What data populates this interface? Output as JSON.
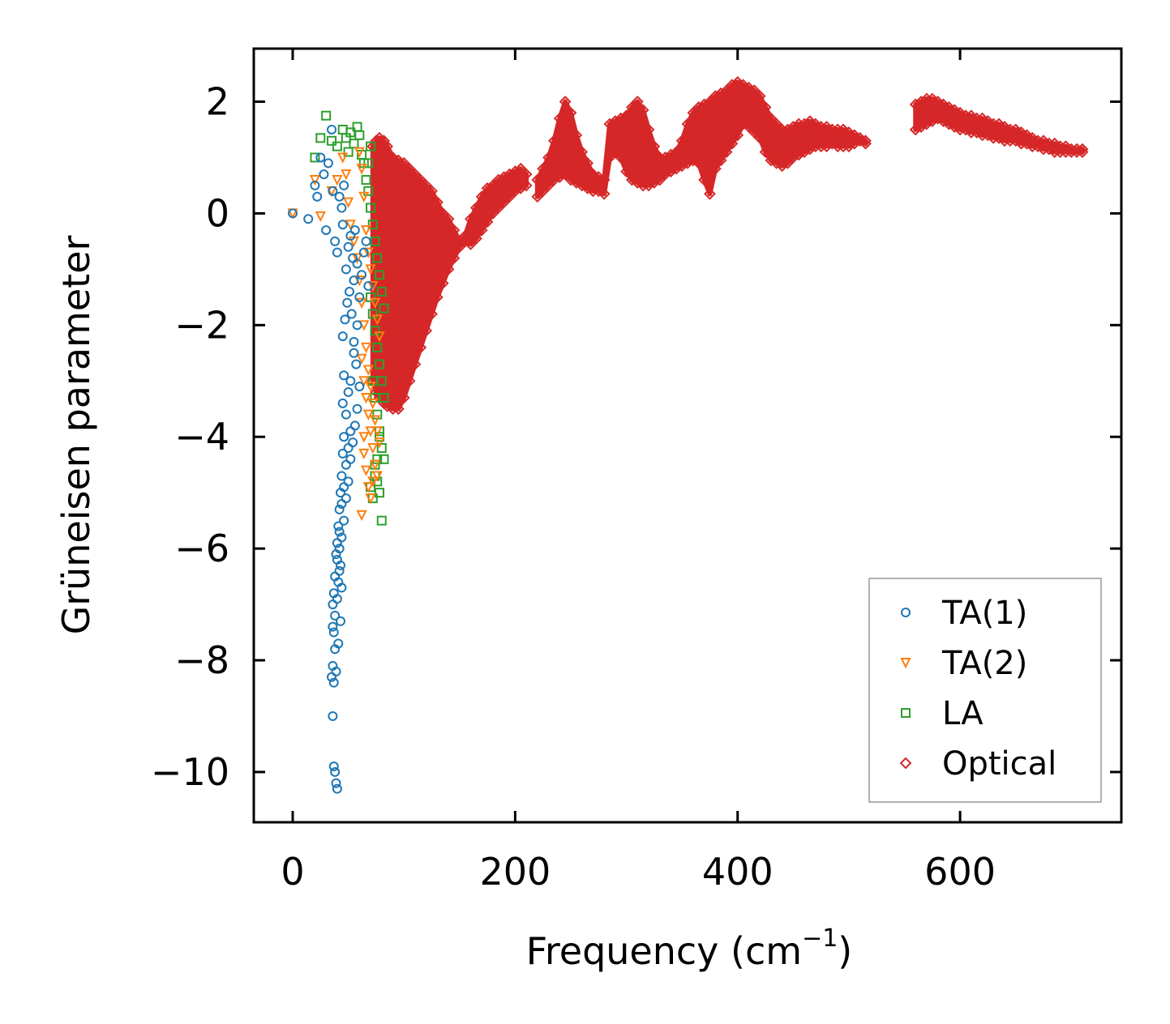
{
  "chart_data": {
    "type": "scatter",
    "title": "",
    "xlabel": "Frequency (cm",
    "xlabel_sup": "−1",
    "xlabel_end": ")",
    "ylabel": "Grüneisen parameter",
    "xlim": [
      -35,
      745
    ],
    "ylim": [
      -10.9,
      2.95
    ],
    "xticks": [
      0,
      200,
      400,
      600
    ],
    "xtick_labels": [
      "0",
      "200",
      "400",
      "600"
    ],
    "yticks": [
      2,
      0,
      -2,
      -4,
      -6,
      -8,
      -10
    ],
    "ytick_labels": [
      "2",
      "0",
      "−2",
      "−4",
      "−6",
      "−8",
      "−10"
    ],
    "grid": false,
    "legend_position": "lower-right",
    "series": [
      {
        "name": "TA(1)",
        "marker": "circle",
        "color": "#1f77b4",
        "x": [
          0,
          14,
          20,
          22,
          25,
          28,
          30,
          32,
          35,
          36,
          38,
          40,
          42,
          44,
          45,
          46,
          48,
          50,
          52,
          54,
          55,
          56,
          58,
          60,
          62,
          64,
          66,
          68,
          58,
          55,
          52,
          50,
          48,
          46,
          45,
          44,
          43,
          42,
          41,
          40,
          39,
          38,
          37,
          36,
          36,
          37,
          38,
          40,
          42,
          44,
          46,
          48,
          50,
          52,
          54,
          56,
          58,
          60,
          45,
          47,
          49,
          51,
          53,
          55,
          57,
          40,
          42,
          44,
          46,
          48,
          50,
          52,
          38,
          36,
          35,
          37,
          39,
          41,
          43,
          36,
          37,
          38,
          39,
          40,
          41,
          42,
          43,
          44,
          45,
          46
        ],
        "y": [
          0,
          -0.1,
          0.5,
          0.3,
          1.0,
          0.7,
          -0.3,
          0.9,
          1.5,
          0.4,
          -0.5,
          -0.7,
          0.3,
          0.1,
          -0.2,
          0.5,
          -1.0,
          -0.6,
          -0.4,
          -0.8,
          -1.2,
          -0.3,
          -0.9,
          -1.5,
          -1.1,
          -0.7,
          -0.5,
          -1.3,
          -2.0,
          -2.5,
          -3.0,
          -3.2,
          -3.6,
          -4.0,
          -4.3,
          -4.7,
          -5.0,
          -5.3,
          -5.6,
          -5.9,
          -6.1,
          -6.5,
          -6.8,
          -7.0,
          -7.4,
          -7.5,
          -7.2,
          -6.9,
          -6.0,
          -5.8,
          -5.5,
          -5.1,
          -4.8,
          -4.4,
          -4.1,
          -3.8,
          -3.5,
          -3.1,
          -2.2,
          -1.9,
          -1.6,
          -1.4,
          -1.8,
          -2.3,
          -2.7,
          -6.2,
          -5.7,
          -5.2,
          -4.9,
          -4.5,
          -4.2,
          -3.9,
          -7.8,
          -8.1,
          -8.3,
          -8.4,
          -8.2,
          -7.7,
          -7.3,
          -9.0,
          -9.9,
          -10.0,
          -10.2,
          -10.3,
          -6.6,
          -6.4,
          -6.3,
          -6.7,
          -3.4,
          -2.9
        ]
      },
      {
        "name": "TA(2)",
        "marker": "triangle-down",
        "color": "#ff7f0e",
        "x": [
          0,
          20,
          25,
          35,
          40,
          45,
          48,
          50,
          52,
          55,
          58,
          60,
          62,
          64,
          66,
          68,
          70,
          72,
          74,
          76,
          78,
          60,
          62,
          64,
          66,
          68,
          70,
          72,
          74,
          76,
          78,
          62,
          64,
          66,
          68,
          70,
          72,
          74,
          76,
          64,
          66,
          68,
          70,
          72,
          62,
          64
        ],
        "y": [
          0,
          0.6,
          -0.05,
          0.4,
          0.6,
          1.0,
          0.7,
          0.2,
          -0.2,
          -0.5,
          -0.8,
          1.1,
          0.8,
          0.3,
          -0.3,
          -0.7,
          -1.0,
          -1.3,
          -1.6,
          -1.9,
          -2.2,
          -1.2,
          -1.6,
          -2.0,
          -2.4,
          -2.8,
          -3.1,
          -3.4,
          -3.7,
          -3.9,
          -4.1,
          -2.6,
          -3.0,
          -3.3,
          -3.6,
          -3.9,
          -4.2,
          -4.5,
          -4.7,
          -4.3,
          -4.6,
          -4.9,
          -5.1,
          -4.8,
          -5.4,
          -4.0
        ]
      },
      {
        "name": "LA",
        "marker": "square",
        "color": "#2ca02c",
        "x": [
          20,
          25,
          30,
          35,
          40,
          45,
          48,
          50,
          52,
          55,
          58,
          60,
          62,
          64,
          66,
          68,
          70,
          72,
          74,
          76,
          78,
          80,
          82,
          70,
          72,
          74,
          76,
          78,
          80,
          82,
          72,
          74,
          76,
          78,
          80,
          82,
          74,
          76,
          78,
          80,
          70,
          72,
          74,
          76,
          78,
          68,
          70
        ],
        "y": [
          1.0,
          1.35,
          1.75,
          1.3,
          1.2,
          1.5,
          1.35,
          1.1,
          1.45,
          1.25,
          1.55,
          1.4,
          1.05,
          0.9,
          0.6,
          0.4,
          0.1,
          -0.2,
          -0.5,
          -0.8,
          -1.1,
          -1.4,
          -1.7,
          -1.5,
          -1.8,
          -2.1,
          -2.4,
          -2.7,
          -3.0,
          -3.3,
          -3.0,
          -3.3,
          -3.6,
          -3.9,
          -4.2,
          -4.4,
          -4.5,
          -4.8,
          -5.0,
          -5.5,
          -4.9,
          -5.1,
          -4.7,
          -4.4,
          -4.0,
          0.9,
          1.2
        ]
      },
      {
        "name": "Optical",
        "marker": "diamond",
        "color": "#d62728",
        "band_x": [
          72,
          75,
          78,
          82,
          85,
          90,
          95,
          100,
          105,
          110,
          115,
          120,
          125,
          130,
          135,
          140,
          145,
          150,
          155,
          160,
          165,
          170,
          175,
          180,
          185,
          190,
          195,
          200,
          205,
          210,
          215,
          220,
          225,
          230,
          235,
          240,
          245,
          250,
          255,
          260,
          265,
          270,
          275,
          280,
          285,
          290,
          295,
          300,
          305,
          310,
          315,
          320,
          325,
          330,
          335,
          340,
          345,
          350,
          355,
          360,
          365,
          370,
          375,
          380,
          385,
          390,
          395,
          400,
          405,
          410,
          415,
          420,
          425,
          430,
          435,
          440,
          445,
          450,
          455,
          460,
          465,
          470,
          475,
          480,
          485,
          490,
          495,
          500,
          505,
          510,
          515,
          520,
          525,
          530,
          535,
          540,
          545,
          550,
          555,
          560,
          565,
          570,
          575,
          580,
          585,
          590,
          595,
          600,
          605,
          610,
          615,
          620,
          625,
          630,
          635,
          640,
          645,
          650,
          655,
          660,
          665,
          670,
          675,
          680,
          685,
          690,
          695,
          700,
          705,
          710
        ],
        "band_lo": [
          -3.0,
          -3.2,
          -3.3,
          -3.4,
          -3.45,
          -3.5,
          -3.5,
          -3.3,
          -3.0,
          -2.7,
          -2.4,
          -2.1,
          -1.8,
          -1.5,
          -1.25,
          -1.0,
          -0.8,
          -0.6,
          -0.5,
          -0.55,
          -0.45,
          -0.3,
          -0.15,
          0.0,
          0.1,
          0.2,
          0.3,
          0.4,
          0.45,
          0.5,
          -999,
          0.3,
          0.4,
          0.5,
          0.6,
          0.65,
          0.7,
          0.6,
          0.55,
          0.5,
          0.45,
          0.4,
          0.4,
          0.35,
          1.0,
          1.1,
          1.0,
          0.75,
          0.6,
          0.55,
          0.5,
          0.5,
          0.55,
          0.6,
          0.7,
          0.75,
          0.8,
          0.85,
          0.9,
          0.95,
          0.9,
          0.6,
          0.35,
          0.8,
          0.95,
          1.1,
          1.25,
          1.4,
          1.6,
          1.55,
          1.45,
          1.35,
          1.1,
          0.95,
          0.9,
          0.85,
          0.9,
          1.0,
          1.05,
          1.1,
          1.15,
          1.2,
          1.2,
          1.2,
          1.25,
          1.2,
          1.2,
          1.2,
          1.25,
          1.3,
          1.25,
          -999,
          -999,
          -999,
          -999,
          -999,
          -999,
          -999,
          -999,
          1.5,
          1.55,
          1.6,
          1.65,
          1.7,
          1.65,
          1.6,
          1.55,
          1.5,
          1.5,
          1.45,
          1.45,
          1.4,
          1.4,
          1.35,
          1.35,
          1.3,
          1.3,
          1.3,
          1.25,
          1.25,
          1.2,
          1.2,
          1.15,
          1.15,
          1.1,
          1.1,
          1.1,
          1.1,
          1.1,
          1.1
        ],
        "band_hi": [
          1.2,
          1.3,
          1.35,
          1.3,
          1.2,
          1.0,
          0.95,
          0.9,
          0.8,
          0.7,
          0.6,
          0.5,
          0.4,
          0.2,
          0.0,
          -0.1,
          -0.3,
          -0.5,
          -0.4,
          -0.1,
          0.1,
          0.3,
          0.45,
          0.5,
          0.6,
          0.65,
          0.7,
          0.75,
          0.8,
          0.7,
          -999,
          0.6,
          0.8,
          1.0,
          1.3,
          1.7,
          2.0,
          1.8,
          1.4,
          1.1,
          0.9,
          0.7,
          0.65,
          0.6,
          1.6,
          1.65,
          1.7,
          1.75,
          1.9,
          2.0,
          1.85,
          1.5,
          1.2,
          1.0,
          1.0,
          1.05,
          1.1,
          1.3,
          1.6,
          1.8,
          1.9,
          1.95,
          2.0,
          2.1,
          2.15,
          2.2,
          2.3,
          2.35,
          2.3,
          2.25,
          2.2,
          2.1,
          1.9,
          1.7,
          1.6,
          1.5,
          1.5,
          1.55,
          1.6,
          1.6,
          1.65,
          1.6,
          1.55,
          1.55,
          1.5,
          1.5,
          1.5,
          1.45,
          1.4,
          1.35,
          1.3,
          -999,
          -999,
          -999,
          -999,
          -999,
          -999,
          -999,
          -999,
          1.95,
          2.0,
          2.05,
          2.05,
          2.0,
          1.95,
          1.9,
          1.85,
          1.8,
          1.75,
          1.75,
          1.7,
          1.7,
          1.65,
          1.6,
          1.6,
          1.55,
          1.5,
          1.5,
          1.45,
          1.4,
          1.35,
          1.3,
          1.3,
          1.25,
          1.25,
          1.2,
          1.2,
          1.15,
          1.15,
          1.15
        ]
      }
    ]
  }
}
